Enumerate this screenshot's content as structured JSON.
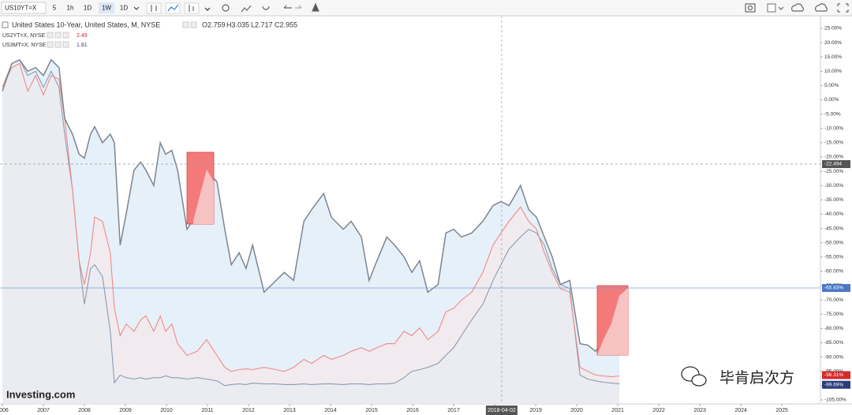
{
  "chart_data": {
    "type": "line",
    "symbol": "US10YT=X",
    "intervals": [
      "5",
      "1h",
      "1D",
      "1W",
      "1D"
    ],
    "active_interval": 3,
    "ohlc": [
      "O2.759",
      "H3.035",
      "L2.717",
      "C2.955"
    ],
    "watermark": "Investing.com",
    "x": [
      2006,
      2006.23,
      2006.42,
      2006.62,
      2006.81,
      2007.0,
      2007.19,
      2007.38,
      2007.52,
      2007.71,
      2007.87,
      2008.0,
      2008.15,
      2008.25,
      2008.44,
      2008.63,
      2008.73,
      2008.87,
      2009.02,
      2009.21,
      2009.37,
      2009.5,
      2009.69,
      2009.85,
      2009.98,
      2010.13,
      2010.27,
      2010.5,
      2010.75,
      2010.98,
      2011.23,
      2011.42,
      2011.58,
      2011.77,
      2011.94,
      2012.1,
      2012.38,
      2012.67,
      2012.87,
      2013.1,
      2013.35,
      2013.54,
      2013.83,
      2014.02,
      2014.31,
      2014.5,
      2014.75,
      2014.94,
      2015.13,
      2015.37,
      2015.56,
      2015.79,
      2015.98,
      2016.17,
      2016.37,
      2016.62,
      2016.81,
      2017.0,
      2017.19,
      2017.44,
      2017.71,
      2017.96,
      2018.15,
      2018.35,
      2018.63,
      2018.83,
      2019.02,
      2019.21,
      2019.4,
      2019.6,
      2019.83,
      2020.08,
      2020.27,
      2020.46,
      2020.65,
      2020.85,
      2021.04
    ],
    "series": [
      {
        "name": "United States 10-Year, United States, M, NYSE",
        "color": "#7c8590",
        "fill": "#dce9f5",
        "values": [
          3,
          12.7,
          14,
          10,
          11.3,
          8.5,
          14,
          11.3,
          -6.6,
          -12,
          -19,
          -20.4,
          -12,
          -9.4,
          -15,
          -12,
          -15,
          -50.8,
          -39.7,
          -24.6,
          -21.8,
          -24.6,
          -30,
          -15,
          -19,
          -17.7,
          -24.6,
          -45.3,
          -39.7,
          -24.6,
          -28.7,
          -45.3,
          -57.7,
          -53.5,
          -59,
          -50.8,
          -67.3,
          -63.2,
          -60.4,
          -63.2,
          -42.5,
          -38.4,
          -32.8,
          -41.1,
          -45.3,
          -42.5,
          -48,
          -63.2,
          -56.3,
          -48,
          -50.8,
          -54.9,
          -60.4,
          -56.3,
          -67.3,
          -64.6,
          -46.6,
          -45.3,
          -48,
          -46.6,
          -42.5,
          -37,
          -35.6,
          -37,
          -30,
          -38.4,
          -41.1,
          -48,
          -54.9,
          -64.6,
          -63.2,
          -85.3,
          -85.8,
          -88,
          -83.9,
          -78.4,
          -68.7
        ]
      },
      {
        "name": "US2YT=X, NYSE",
        "last": "2.49",
        "color": "#f08a8a",
        "fill": "#fbe3e3",
        "values": [
          4.4,
          11.3,
          12.7,
          3,
          8.5,
          1.7,
          8.5,
          7.2,
          -6.6,
          -31.5,
          -56.3,
          -64.6,
          -53.5,
          -41,
          -42.5,
          -53.5,
          -72.9,
          -82.5,
          -78.4,
          -81,
          -77,
          -75.6,
          -81,
          -75.6,
          -81,
          -78.4,
          -85.3,
          -89.4,
          -88,
          -83.9,
          -89.4,
          -93.6,
          -95,
          -94.4,
          -94.1,
          -94.4,
          -93.6,
          -94.4,
          -95,
          -93.6,
          -90.8,
          -92.2,
          -89.4,
          -90.8,
          -89.4,
          -88,
          -86.7,
          -88,
          -86.7,
          -85.3,
          -85.3,
          -81,
          -82.5,
          -79.8,
          -83.9,
          -81,
          -74.2,
          -72.9,
          -70.1,
          -67.3,
          -60.4,
          -50.8,
          -46.6,
          -42.5,
          -37.5,
          -42.5,
          -45.3,
          -53.5,
          -60.4,
          -66,
          -67.3,
          -93.6,
          -95,
          -96.3,
          -96.6,
          -96.9,
          -96.6
        ]
      },
      {
        "name": "US3MT=X, NYSE",
        "last": "1.81",
        "color": "#8a9bb0",
        "fill": "#e6eef6",
        "values": [
          4.4,
          12.7,
          14,
          8.5,
          10,
          4.4,
          10,
          4.4,
          -12,
          -31.5,
          -56.3,
          -71.5,
          -59,
          -57.7,
          -61.8,
          -81,
          -99,
          -96.3,
          -97.2,
          -97.7,
          -97.2,
          -97.7,
          -97.2,
          -97.2,
          -96.6,
          -97.2,
          -97.2,
          -97.7,
          -97.2,
          -97.7,
          -98.3,
          -100,
          -99.6,
          -99.4,
          -99.6,
          -99.1,
          -99.4,
          -99.4,
          -99.6,
          -99.6,
          -99.4,
          -99.6,
          -99.4,
          -99.4,
          -99.6,
          -99.4,
          -99.4,
          -99.6,
          -99.4,
          -99.4,
          -99.1,
          -97.2,
          -95,
          -94.4,
          -93.6,
          -92.2,
          -89.4,
          -86.7,
          -82.5,
          -77,
          -71.5,
          -63.2,
          -57.7,
          -52.2,
          -48,
          -45.3,
          -46.6,
          -50.8,
          -59,
          -64.6,
          -66,
          -96.3,
          -97.7,
          -98.3,
          -98.8,
          -99.1,
          -99.4
        ]
      }
    ],
    "xlim": [
      2006,
      2025.94
    ],
    "xticks": [
      2006,
      2007,
      2008,
      2009,
      2010,
      2011,
      2012,
      2013,
      2014,
      2015,
      2016,
      2017,
      2018,
      2019,
      2020,
      2021,
      2022,
      2023,
      2024,
      2025
    ],
    "ylim": [
      -106.4,
      29.4
    ],
    "yticks": [
      {
        "value": 25,
        "label": "25.00%"
      },
      {
        "value": 20,
        "label": "20.00%"
      },
      {
        "value": 15,
        "label": "15.00%"
      },
      {
        "value": 10,
        "label": "10.00%"
      },
      {
        "value": 5,
        "label": "5.00%"
      },
      {
        "value": 0,
        "label": "0.00%"
      },
      {
        "value": -5,
        "label": "-5.00%"
      },
      {
        "value": -10,
        "label": "-10.00%"
      },
      {
        "value": -15,
        "label": "-15.00%"
      },
      {
        "value": -20,
        "label": "-20.00%"
      },
      {
        "value": -25,
        "label": "-25.00%"
      },
      {
        "value": -30,
        "label": "-30.00%"
      },
      {
        "value": -35,
        "label": "-35.00%"
      },
      {
        "value": -40,
        "label": "-40.00%"
      },
      {
        "value": -45,
        "label": "-45.00%"
      },
      {
        "value": -50,
        "label": "-50.00%"
      },
      {
        "value": -55,
        "label": "-55.00%"
      },
      {
        "value": -60,
        "label": "-60.00%"
      },
      {
        "value": -65,
        "label": "-65.00%"
      },
      {
        "value": -70,
        "label": "-70.00%"
      },
      {
        "value": -75,
        "label": "-75.00%"
      },
      {
        "value": -80,
        "label": "-80.00%"
      },
      {
        "value": -85,
        "label": "-85.00%"
      },
      {
        "value": -90,
        "label": "-90.00%"
      },
      {
        "value": -95,
        "label": "-95.00%"
      },
      {
        "value": -100,
        "label": "-100.00%"
      },
      {
        "value": -105,
        "label": "-105.00%"
      }
    ],
    "crosshair_x": {
      "value": 2018.17,
      "label": "2018-04-02"
    },
    "crosshair_y": {
      "value": -22.494,
      "label": "-22.494",
      "color": "#555555"
    },
    "price_line": {
      "value": -65.83,
      "label": "-65.83%",
      "color": "#4a78c8"
    },
    "last_labels": [
      {
        "value": -96.31,
        "label": "-96.31%",
        "color": "#d42a2a"
      },
      {
        "value": -99.69,
        "label": "-99.69%",
        "color": "#2b3d7a"
      }
    ]
  },
  "overlay_text": "毕肯启次方"
}
